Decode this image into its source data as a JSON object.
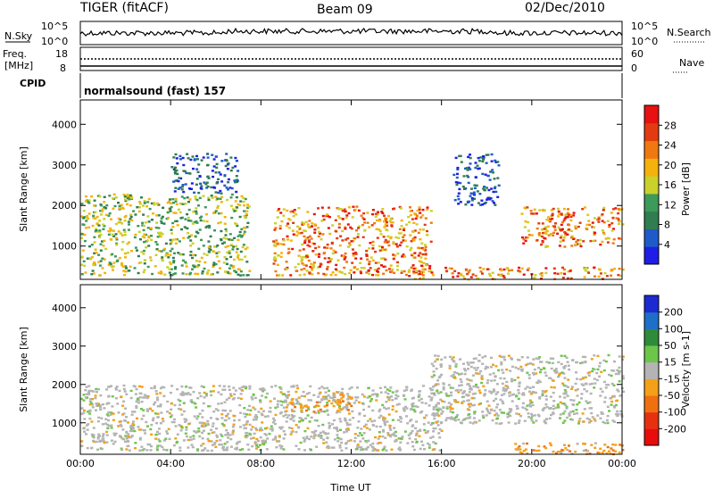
{
  "header": {
    "title": "TIGER (fitACF)",
    "beam": "Beam 09",
    "date": "02/Dec/2010"
  },
  "strip": {
    "nsky_label": "N.Sky",
    "nsearch_label": "N.Search",
    "nsky_ticks": [
      "10^5",
      "10^0"
    ],
    "nsearch_ticks": [
      "10^5",
      "10^0"
    ],
    "freq_label_line1": "Freq.",
    "freq_label_line2": "[MHz]",
    "freq_ticks": [
      "18",
      "8"
    ],
    "nave_label": "Nave",
    "nave_ticks": [
      "60",
      "0"
    ],
    "cpid_label": "CPID",
    "cpid_text": "normalsound (fast) 157"
  },
  "chart_data": [
    {
      "type": "heatmap",
      "title": "",
      "quantity": "Power",
      "ylabel": "Slant Range [km]",
      "xlabel": "",
      "ylim": [
        180,
        4600
      ],
      "xlim": [
        "00:00",
        "00:00"
      ],
      "yticks": [
        "1000",
        "2000",
        "3000",
        "4000"
      ],
      "xticks": [
        "00:00",
        "04:00",
        "08:00",
        "12:00",
        "16:00",
        "20:00",
        "00:00"
      ],
      "colorbar": {
        "label": "Power [dB]",
        "ticks": [
          "4",
          "8",
          "12",
          "16",
          "20",
          "24",
          "28"
        ],
        "colors": [
          "#1e1ee6",
          "#1e5bc8",
          "#2f7d50",
          "#3c9a5a",
          "#c9d12a",
          "#f6b20c",
          "#f07810",
          "#e23b12",
          "#e81010"
        ]
      },
      "echo_regions": [
        {
          "t_start": 0.0,
          "t_end": 7.5,
          "r_min": 300,
          "r_max": 2300,
          "level": "mid"
        },
        {
          "t_start": 4.0,
          "t_end": 7.0,
          "r_min": 2300,
          "r_max": 3300,
          "level": "low"
        },
        {
          "t_start": 8.5,
          "t_end": 15.5,
          "r_min": 300,
          "r_max": 2000,
          "level": "high"
        },
        {
          "t_start": 16.5,
          "t_end": 18.5,
          "r_min": 2000,
          "r_max": 3300,
          "level": "low"
        },
        {
          "t_start": 19.5,
          "t_end": 24.0,
          "r_min": 1000,
          "r_max": 2000,
          "level": "high"
        },
        {
          "t_start": 14.5,
          "t_end": 24.0,
          "r_min": 200,
          "r_max": 500,
          "level": "high"
        }
      ]
    },
    {
      "type": "heatmap",
      "title": "",
      "quantity": "Velocity",
      "ylabel": "Slant Range [km]",
      "xlabel": "Time UT",
      "ylim": [
        180,
        4600
      ],
      "xlim": [
        "00:00",
        "00:00"
      ],
      "yticks": [
        "1000",
        "2000",
        "3000",
        "4000"
      ],
      "xticks": [
        "00:00",
        "04:00",
        "08:00",
        "12:00",
        "16:00",
        "20:00",
        "00:00"
      ],
      "colorbar": {
        "label": "Velocity [m s-1]",
        "ticks": [
          "200",
          "100",
          "50",
          "15",
          "-15",
          "-50",
          "-100",
          "-200"
        ],
        "colors": [
          "#1c2ad2",
          "#1e6fc8",
          "#2e8b3a",
          "#6cc64a",
          "#b4b4b4",
          "#f4a018",
          "#f07010",
          "#e63010",
          "#e80c0c"
        ]
      },
      "echo_regions": [
        {
          "t_start": 0.0,
          "t_end": 16.0,
          "r_min": 300,
          "r_max": 2000,
          "level": "near-zero"
        },
        {
          "t_start": 9.0,
          "t_end": 12.0,
          "r_min": 1300,
          "r_max": 1800,
          "level": "negative"
        },
        {
          "t_start": 15.5,
          "t_end": 24.0,
          "r_min": 1000,
          "r_max": 2800,
          "level": "near-zero"
        },
        {
          "t_start": 19.0,
          "t_end": 24.0,
          "r_min": 200,
          "r_max": 500,
          "level": "negative"
        }
      ]
    }
  ]
}
